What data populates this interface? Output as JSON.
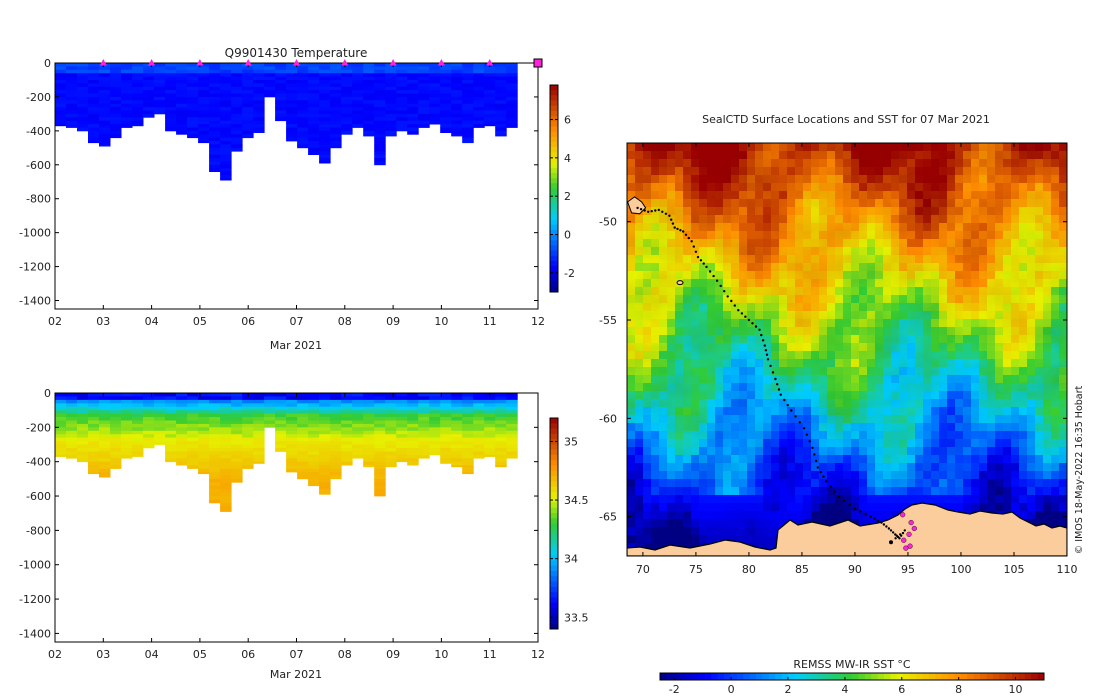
{
  "chart_data": [
    {
      "id": "temperature",
      "type": "heatmap",
      "title": "Q9901430  Temperature",
      "xlabel": "Mar 2021",
      "ylabel": "",
      "x_tick_labels": [
        "02",
        "03",
        "04",
        "05",
        "06",
        "07",
        "08",
        "09",
        "10",
        "11",
        "12"
      ],
      "y_tick_labels": [
        "0",
        "-200",
        "-400",
        "-600",
        "-800",
        "-1000",
        "-1200",
        "-1400"
      ],
      "y_tick_values": [
        0,
        -200,
        -400,
        -600,
        -800,
        -1000,
        -1200,
        -1400
      ],
      "xlim_days": [
        2,
        12
      ],
      "ylim": [
        -1450,
        0
      ],
      "profile_time_range_days": [
        2.0,
        11.57
      ],
      "profile_bottom_depths_m": [
        -370,
        -380,
        -400,
        -470,
        -490,
        -440,
        -380,
        -370,
        -320,
        -300,
        -400,
        -420,
        -440,
        -470,
        -640,
        -690,
        -520,
        -440,
        -410,
        -200,
        -340,
        -460,
        -500,
        -540,
        -590,
        -500,
        -420,
        -380,
        -430,
        -600,
        -430,
        -400,
        -420,
        -380,
        -360,
        -410,
        -430,
        -470,
        -380,
        -370,
        -430,
        -380
      ],
      "surface_markers_days": [
        3,
        4,
        5,
        6,
        7,
        8,
        9,
        10,
        11
      ],
      "end_marker_day": 12,
      "colorbar": {
        "min": -3,
        "max": 7.8,
        "tick_labels": [
          "-2",
          "0",
          "2",
          "4",
          "6"
        ],
        "tick_values": [
          -2,
          0,
          2,
          4,
          6
        ]
      },
      "value_description": "mostly -2 to -1 °C throughout the profiles"
    },
    {
      "id": "salinity",
      "type": "heatmap",
      "title": "",
      "xlabel": "Mar 2021",
      "ylabel": "",
      "x_tick_labels": [
        "02",
        "03",
        "04",
        "05",
        "06",
        "07",
        "08",
        "09",
        "10",
        "11",
        "12"
      ],
      "y_tick_labels": [
        "0",
        "-200",
        "-400",
        "-600",
        "-800",
        "-1000",
        "-1200",
        "-1400"
      ],
      "y_tick_values": [
        0,
        -200,
        -400,
        -600,
        -800,
        -1000,
        -1200,
        -1400
      ],
      "xlim_days": [
        2,
        12
      ],
      "ylim": [
        -1450,
        0
      ],
      "colorbar": {
        "min": 33.4,
        "max": 35.2,
        "tick_labels": [
          "33.5",
          "34",
          "34.5",
          "35"
        ],
        "tick_values": [
          33.5,
          34,
          34.5,
          35
        ]
      },
      "value_description": "33.6-33.9 near surface increasing to about 34.6-34.7 at depth"
    },
    {
      "id": "sst-map",
      "type": "heatmap",
      "title": "SealCTD Surface Locations and SST for 07 Mar 2021",
      "xlabel": "",
      "ylabel": "",
      "x_tick_labels": [
        "70",
        "75",
        "80",
        "85",
        "90",
        "95",
        "100",
        "105",
        "110"
      ],
      "x_tick_values": [
        70,
        75,
        80,
        85,
        90,
        95,
        100,
        105,
        110
      ],
      "y_tick_labels": [
        "-50",
        "-55",
        "-60",
        "-65"
      ],
      "y_tick_values": [
        -50,
        -55,
        -60,
        -65
      ],
      "xlim": [
        68.5,
        110
      ],
      "ylim": [
        -67,
        -46
      ],
      "colorbar": {
        "label": "REMSS MW-IR SST °C",
        "min": -2.5,
        "max": 11,
        "tick_labels": [
          "-2",
          "0",
          "2",
          "4",
          "6",
          "8",
          "10"
        ],
        "tick_values": [
          -2,
          0,
          2,
          4,
          6,
          8,
          10
        ]
      },
      "track_points": [
        {
          "lon": 69.5,
          "lat": -49.3
        },
        {
          "lon": 70.5,
          "lat": -49.5
        },
        {
          "lon": 71.5,
          "lat": -49.4
        },
        {
          "lon": 72.5,
          "lat": -49.7
        },
        {
          "lon": 73.0,
          "lat": -50.3
        },
        {
          "lon": 73.8,
          "lat": -50.5
        },
        {
          "lon": 74.6,
          "lat": -51.0
        },
        {
          "lon": 75.2,
          "lat": -51.8
        },
        {
          "lon": 76.0,
          "lat": -52.3
        },
        {
          "lon": 77.0,
          "lat": -53.0
        },
        {
          "lon": 78.0,
          "lat": -53.8
        },
        {
          "lon": 79.0,
          "lat": -54.5
        },
        {
          "lon": 80.0,
          "lat": -55.0
        },
        {
          "lon": 81.0,
          "lat": -55.5
        },
        {
          "lon": 81.5,
          "lat": -56.3
        },
        {
          "lon": 81.8,
          "lat": -57.0
        },
        {
          "lon": 82.5,
          "lat": -58.0
        },
        {
          "lon": 83.0,
          "lat": -58.8
        },
        {
          "lon": 84.0,
          "lat": -59.6
        },
        {
          "lon": 85.2,
          "lat": -60.5
        },
        {
          "lon": 86.0,
          "lat": -61.5
        },
        {
          "lon": 86.5,
          "lat": -62.5
        },
        {
          "lon": 87.3,
          "lat": -63.2
        },
        {
          "lon": 88.5,
          "lat": -64.0
        },
        {
          "lon": 90.0,
          "lat": -64.6
        },
        {
          "lon": 91.5,
          "lat": -65.0
        },
        {
          "lon": 92.5,
          "lat": -65.3
        },
        {
          "lon": 93.2,
          "lat": -65.6
        },
        {
          "lon": 93.8,
          "lat": -65.9
        },
        {
          "lon": 94.2,
          "lat": -66.1
        },
        {
          "lon": 94.7,
          "lat": -65.7
        },
        {
          "lon": 93.4,
          "lat": -66.3
        }
      ],
      "surface_locations": [
        {
          "lon": 94.5,
          "lat": -64.9
        },
        {
          "lon": 95.3,
          "lat": -65.3
        },
        {
          "lon": 95.6,
          "lat": -65.6
        },
        {
          "lon": 95.1,
          "lat": -65.9
        },
        {
          "lon": 94.6,
          "lat": -66.2
        },
        {
          "lon": 95.2,
          "lat": -66.5
        },
        {
          "lon": 94.8,
          "lat": -66.6
        }
      ],
      "islands": [
        {
          "lon": 69.5,
          "lat": -49.4
        },
        {
          "lon": 73.5,
          "lat": -53.1
        }
      ]
    }
  ],
  "credit": "© IMOS 18-May-2022 16:35 Hobart",
  "colors": {
    "land": "#fbcc9c",
    "marker": "#ff22dd",
    "track": "#000000",
    "frame": "#000000"
  }
}
